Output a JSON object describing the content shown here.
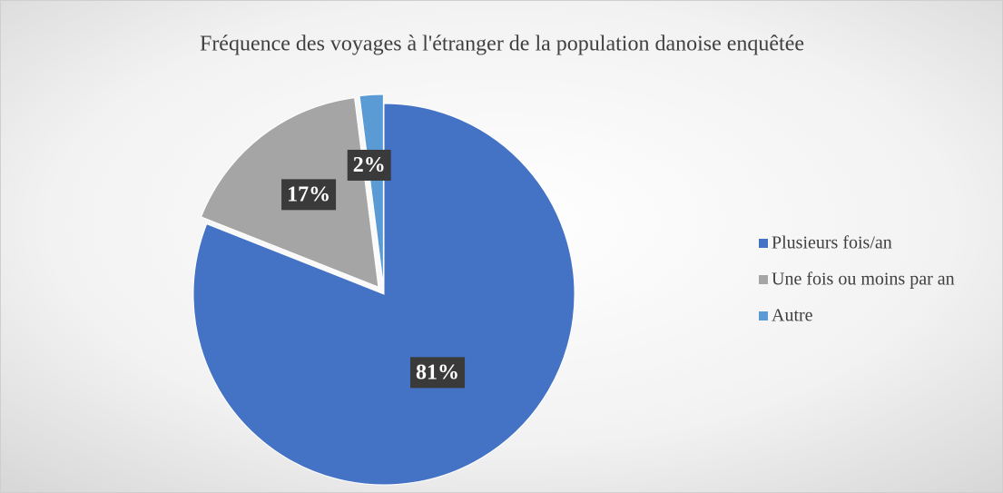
{
  "chart_data": {
    "type": "pie",
    "title": "Fréquence des voyages à l'étranger de la population danoise enquêtée",
    "categories": [
      "Plusieurs fois/an",
      "Une fois ou moins par an",
      "Autre"
    ],
    "values": [
      81,
      17,
      2
    ],
    "value_labels": [
      "81%",
      "17%",
      "2%"
    ],
    "colors": [
      "#4472c4",
      "#a5a5a5",
      "#5b9bd5"
    ],
    "legend": "right"
  }
}
